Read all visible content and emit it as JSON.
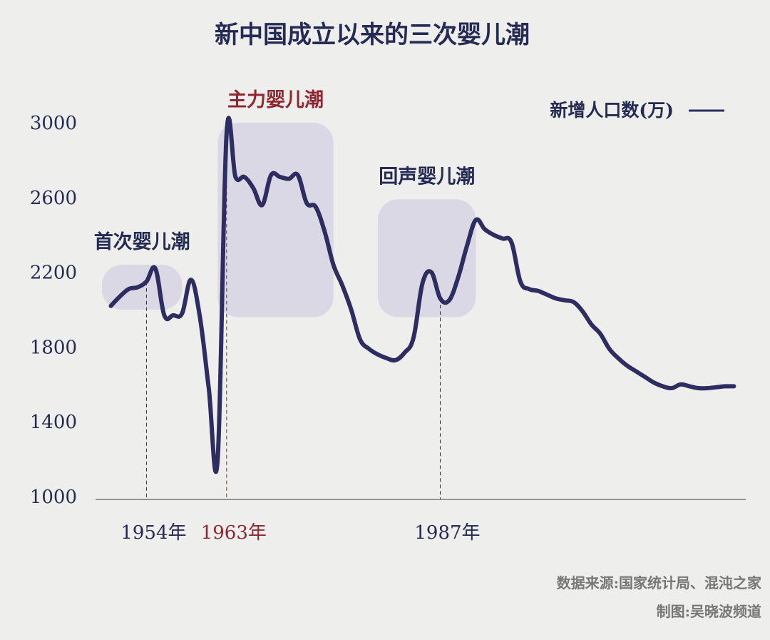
{
  "title": "新中国成立以来的三次婴儿潮",
  "legend": {
    "label": "新增人口数(万)"
  },
  "colors": {
    "line": "#2e2d62",
    "text": "#252b55",
    "highlight": "#8f2630",
    "band": "#dad8e4",
    "axis": "#777777"
  },
  "periods": [
    {
      "label": "首次婴儿潮",
      "x_start": 1949,
      "x_end": 1958,
      "y_start": 2000,
      "y_end": 2240,
      "marker_year": 1954,
      "marker_label": "1954年",
      "highlight": false
    },
    {
      "label": "主力婴儿潮",
      "x_start": 1962,
      "x_end": 1975,
      "y_start": 1960,
      "y_end": 3000,
      "marker_year": 1963,
      "marker_label": "1963年",
      "highlight": true
    },
    {
      "label": "回声婴儿潮",
      "x_start": 1980,
      "x_end": 1991,
      "y_start": 1960,
      "y_end": 2590,
      "marker_year": 1987,
      "marker_label": "1987年",
      "highlight": false
    }
  ],
  "source": {
    "data": "数据来源:国家统计局、混沌之家",
    "author": "制图:吴晓波频道"
  },
  "chart_data": {
    "type": "line",
    "title": "新中国成立以来的三次婴儿潮",
    "xlabel": "",
    "ylabel": "",
    "ylim": [
      1000,
      3000
    ],
    "yticks": [
      1000,
      1400,
      1800,
      2200,
      2600,
      3000
    ],
    "xlim": [
      1949.8,
      2021
    ],
    "grid": false,
    "legend": "top-right",
    "series": [
      {
        "name": "新增人口数(万)",
        "x": [
          1950,
          1951,
          1952,
          1953,
          1954,
          1955,
          1956,
          1957,
          1958,
          1959,
          1960,
          1961,
          1962,
          1963,
          1964,
          1965,
          1966,
          1967,
          1968,
          1969,
          1970,
          1971,
          1972,
          1973,
          1974,
          1975,
          1976,
          1977,
          1978,
          1979,
          1980,
          1981,
          1982,
          1983,
          1984,
          1985,
          1986,
          1987,
          1988,
          1989,
          1990,
          1991,
          1992,
          1993,
          1994,
          1995,
          1996,
          1997,
          1998,
          1999,
          2000,
          2001,
          2002,
          2003,
          2004,
          2005,
          2006,
          2007,
          2008,
          2009,
          2010,
          2011,
          2012,
          2013,
          2014,
          2015,
          2016,
          2017,
          2018,
          2019,
          2020
        ],
        "values": [
          2020,
          2070,
          2110,
          2120,
          2150,
          2220,
          1970,
          1970,
          1980,
          2160,
          1960,
          1580,
          1200,
          2940,
          2710,
          2710,
          2650,
          2560,
          2720,
          2710,
          2700,
          2720,
          2570,
          2550,
          2420,
          2240,
          2130,
          2000,
          1840,
          1790,
          1760,
          1740,
          1730,
          1770,
          1850,
          2140,
          2200,
          2060,
          2050,
          2170,
          2340,
          2480,
          2430,
          2400,
          2380,
          2360,
          2150,
          2110,
          2100,
          2080,
          2060,
          2050,
          2040,
          1990,
          1920,
          1870,
          1790,
          1740,
          1700,
          1670,
          1640,
          1610,
          1590,
          1580,
          1600,
          1590,
          1580,
          1580,
          1585,
          1590,
          1590
        ]
      }
    ]
  }
}
